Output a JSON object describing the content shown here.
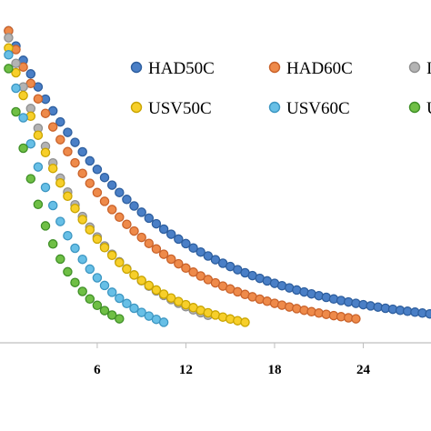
{
  "chart_data": {
    "type": "scatter",
    "title": "",
    "xlabel": "",
    "ylabel": "",
    "xlim": [
      -5.5,
      30
    ],
    "ylim": [
      0,
      1
    ],
    "grid": false,
    "legend_position": "top-right",
    "x_ticks": [
      {
        "value": 6,
        "label": "6"
      },
      {
        "value": 12,
        "label": "12"
      },
      {
        "value": 18,
        "label": "18"
      },
      {
        "value": 24,
        "label": "24"
      }
    ],
    "series": [
      {
        "name": "HAD50C",
        "marker_fill": "#4a7fc6",
        "marker_edge": "#2d5e9e",
        "x_start": 0,
        "x_step": 0.5,
        "x_end": 29.5,
        "y_start": 0.91,
        "y_end": 0.08,
        "k": 0.104
      },
      {
        "name": "HAD60C",
        "marker_fill": "#ee8a4a",
        "marker_edge": "#c9622a",
        "x_start": 0,
        "x_step": 0.5,
        "x_end": 23.5,
        "y_start": 0.91,
        "y_end": 0.07,
        "k": 0.127
      },
      {
        "name": "",
        "marker_fill": "#b3b3b3",
        "marker_edge": "#8f8f8f",
        "x_start": 0,
        "x_step": 0.5,
        "x_end": 13.5,
        "y_start": 0.89,
        "y_end": 0.08,
        "k": 0.175
      },
      {
        "name": "USV50C",
        "marker_fill": "#f7cf2a",
        "marker_edge": "#c9a400",
        "x_start": 0,
        "x_step": 0.5,
        "x_end": 16,
        "y_start": 0.86,
        "y_end": 0.06,
        "k": 0.178
      },
      {
        "name": "USV60C",
        "marker_fill": "#67bfe6",
        "marker_edge": "#3c96c2",
        "x_start": 0,
        "x_step": 0.5,
        "x_end": 10.5,
        "y_start": 0.84,
        "y_end": 0.06,
        "k": 0.245
      },
      {
        "name": "",
        "marker_fill": "#6fbf45",
        "marker_edge": "#3f8f27",
        "x_start": 0,
        "x_step": 0.5,
        "x_end": 7.5,
        "y_start": 0.8,
        "y_end": 0.07,
        "k": 0.35
      }
    ],
    "legend": [
      {
        "label": "HAD50C",
        "series": 0
      },
      {
        "label": "HAD60C",
        "series": 1
      },
      {
        "label": "I",
        "series": 2
      },
      {
        "label": "USV50C",
        "series": 3
      },
      {
        "label": "USV60C",
        "series": 4
      },
      {
        "label": "U",
        "series": 5
      }
    ]
  }
}
